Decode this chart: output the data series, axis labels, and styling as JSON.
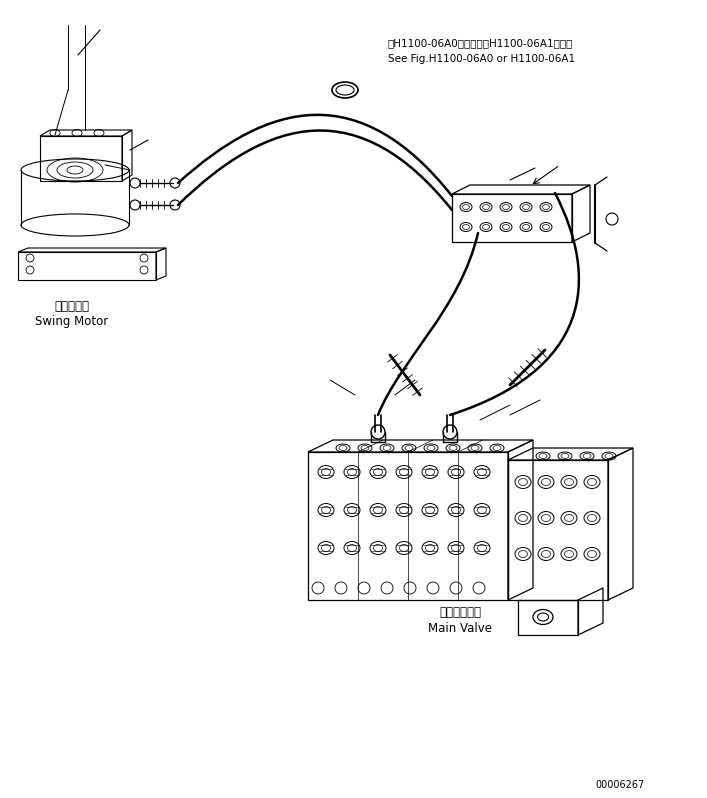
{
  "bg_color": "#ffffff",
  "line_color": "#000000",
  "fig_width": 7.07,
  "fig_height": 7.98,
  "dpi": 100,
  "label_swing_jp": "旋回モータ",
  "label_swing_en": "Swing Motor",
  "label_valve_jp": "メインバルブ",
  "label_valve_en": "Main Valve",
  "label_ref_jp": "第H1100-06A0図または第H1100-06A1図参照",
  "label_ref_en": "See Fig.H1100-06A0 or H1100-06A1",
  "part_number": "00006267"
}
